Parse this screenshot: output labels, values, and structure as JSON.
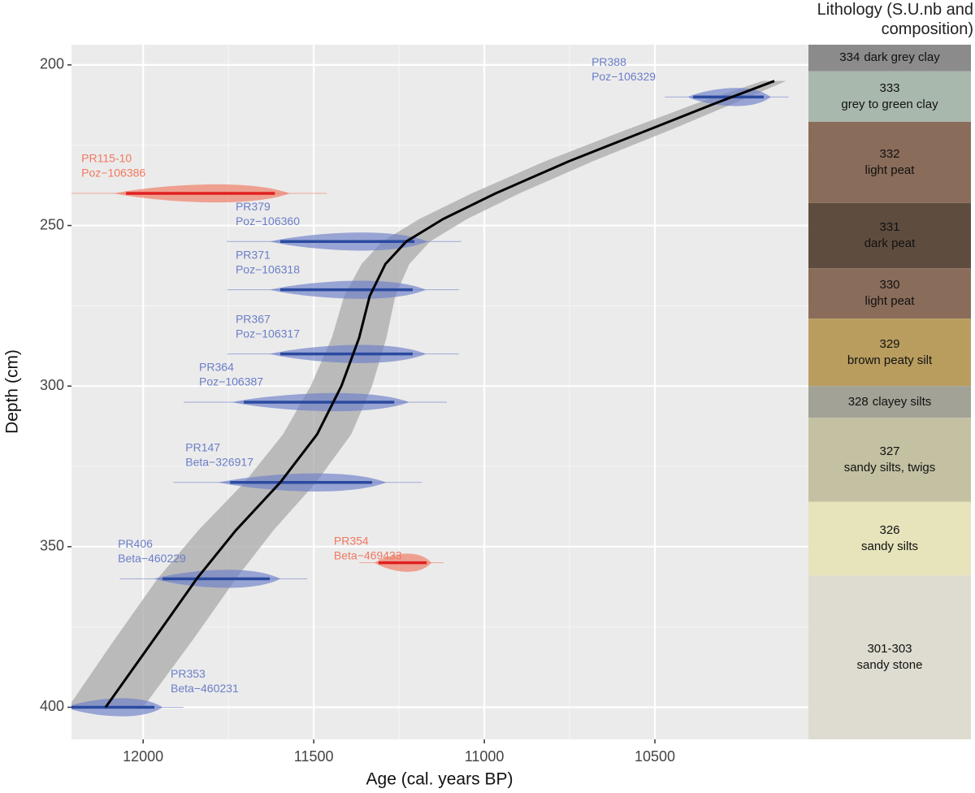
{
  "chart_data": {
    "type": "age_depth",
    "xlabel": "Age (cal. years BP)",
    "ylabel": "Depth (cm)",
    "xlim": [
      12210,
      10050
    ],
    "ylim": [
      193.7,
      410
    ],
    "xticks": [
      12000,
      11500,
      11000,
      10500
    ],
    "yticks": [
      200,
      250,
      300,
      350,
      400
    ],
    "grid": true,
    "model": {
      "color": "#000000",
      "band_color": "#a9a9a9",
      "depth": [
        400,
        380,
        360,
        345,
        330,
        315,
        300,
        285,
        272,
        262,
        255,
        248,
        240,
        230,
        220,
        212,
        205
      ],
      "age": [
        12110,
        11976,
        11843,
        11729,
        11598,
        11490,
        11419,
        11367,
        11336,
        11290,
        11229,
        11121,
        10967,
        10752,
        10514,
        10324,
        10150
      ],
      "age_older": [
        12220,
        12091,
        11958,
        11839,
        11703,
        11590,
        11509,
        11447,
        11411,
        11360,
        11299,
        11191,
        11037,
        10822,
        10579,
        10379,
        10185
      ],
      "age_younger": [
        12000,
        11861,
        11728,
        11619,
        11493,
        11390,
        11329,
        11287,
        11261,
        11220,
        11159,
        11051,
        10897,
        10682,
        10449,
        10269,
        10115
      ]
    },
    "dates": [
      {
        "name": "PR388",
        "code": "Poz−106329",
        "depth": 210,
        "age_min": 10388,
        "age_max": 10181,
        "color": "#6b7ec8"
      },
      {
        "name": "PR115-10",
        "code": "Poz−106386",
        "depth": 240,
        "age_min": 12050,
        "age_max": 11614,
        "color": "#f07860"
      },
      {
        "name": "PR379",
        "code": "Poz−106360",
        "depth": 255,
        "age_min": 11598,
        "age_max": 11205,
        "color": "#6b7ec8"
      },
      {
        "name": "PR371",
        "code": "Poz−106318",
        "depth": 270,
        "age_min": 11598,
        "age_max": 11210,
        "color": "#6b7ec8"
      },
      {
        "name": "PR367",
        "code": "Poz−106317",
        "depth": 290,
        "age_min": 11598,
        "age_max": 11210,
        "color": "#6b7ec8"
      },
      {
        "name": "PR364",
        "code": "Poz−106387",
        "depth": 305,
        "age_min": 11705,
        "age_max": 11264,
        "color": "#6b7ec8"
      },
      {
        "name": "PR147",
        "code": "Beta−326917",
        "depth": 330,
        "age_min": 11745,
        "age_max": 11329,
        "color": "#6b7ec8"
      },
      {
        "name": "PR354",
        "code": "Beta−469433",
        "depth": 355,
        "age_min": 11310,
        "age_max": 11169,
        "color": "#f07860"
      },
      {
        "name": "PR406",
        "code": "Beta−460229",
        "depth": 360,
        "age_min": 11943,
        "age_max": 11629,
        "color": "#6b7ec8"
      },
      {
        "name": "PR353",
        "code": "Beta−460231",
        "depth": 400,
        "age_min": 12210,
        "age_max": 11967,
        "color": "#6b7ec8"
      }
    ],
    "lithology_title": "Lithology (S.U.nb and composition)",
    "units": [
      {
        "number": "334",
        "name": "dark grey clay",
        "top": 193.7,
        "bottom": 202,
        "color": "#8b8b8b"
      },
      {
        "number": "333",
        "name": "grey to green clay",
        "top": 202,
        "bottom": 217.7,
        "color": "#a9b8ad"
      },
      {
        "number": "332",
        "name": "light peat",
        "top": 217.7,
        "bottom": 243,
        "color": "#8a6c5a"
      },
      {
        "number": "331",
        "name": "dark peat",
        "top": 243,
        "bottom": 263.3,
        "color": "#5e4d3f"
      },
      {
        "number": "330",
        "name": "light peat",
        "top": 263.3,
        "bottom": 279,
        "color": "#8a6c5a"
      },
      {
        "number": "329",
        "name": "brown peaty silt",
        "top": 279,
        "bottom": 300,
        "color": "#b99d5f"
      },
      {
        "number": "328",
        "name": "clayey silts",
        "top": 300,
        "bottom": 309.9,
        "color": "#a2a296"
      },
      {
        "number": "327",
        "name": "sandy silts, twigs",
        "top": 309.9,
        "bottom": 336,
        "color": "#c4c1a3"
      },
      {
        "number": "326",
        "name": "sandy silts",
        "top": 336,
        "bottom": 359,
        "color": "#e7e3bb"
      },
      {
        "number": "301-303",
        "name": "sandy stone",
        "top": 359,
        "bottom": 410,
        "color": "#dedcd0"
      }
    ]
  }
}
